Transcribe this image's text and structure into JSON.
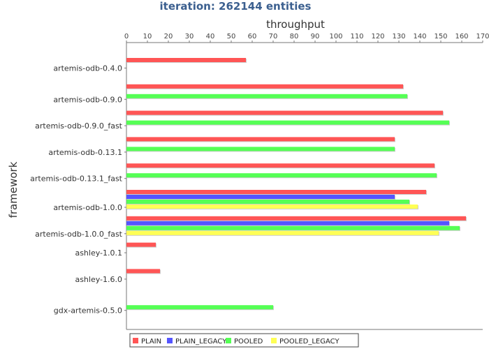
{
  "chart_data": {
    "type": "bar",
    "orientation": "horizontal",
    "title": "iteration: 262144 entities",
    "xlabel": "throughput",
    "ylabel": "framework",
    "xlim": [
      0,
      170
    ],
    "x_ticks": [
      0,
      10,
      20,
      30,
      40,
      50,
      60,
      70,
      80,
      90,
      100,
      110,
      120,
      130,
      140,
      150,
      160,
      170
    ],
    "x_axis_position": "top",
    "legend_position": "bottom",
    "grid": false,
    "categories": [
      "artemis-odb-0.4.0",
      "artemis-odb-0.9.0",
      "artemis-odb-0.9.0_fast",
      "artemis-odb-0.13.1",
      "artemis-odb-0.13.1_fast",
      "artemis-odb-1.0.0",
      "artemis-odb-1.0.0_fast",
      "ashley-1.0.1",
      "ashley-1.6.0",
      "gdx-artemis-0.5.0"
    ],
    "series": [
      {
        "name": "PLAIN",
        "color": "#ff5555",
        "values": [
          57,
          132,
          151,
          128,
          147,
          143,
          162,
          14,
          16,
          null
        ]
      },
      {
        "name": "PLAIN_LEGACY",
        "color": "#5555ff",
        "values": [
          null,
          null,
          null,
          null,
          null,
          128,
          154,
          null,
          null,
          null
        ]
      },
      {
        "name": "POOLED",
        "color": "#55ff55",
        "values": [
          null,
          134,
          154,
          128,
          148,
          135,
          159,
          null,
          null,
          70
        ]
      },
      {
        "name": "POOLED_LEGACY",
        "color": "#ffff55",
        "values": [
          null,
          null,
          null,
          null,
          null,
          139,
          149,
          null,
          null,
          null
        ]
      }
    ]
  }
}
